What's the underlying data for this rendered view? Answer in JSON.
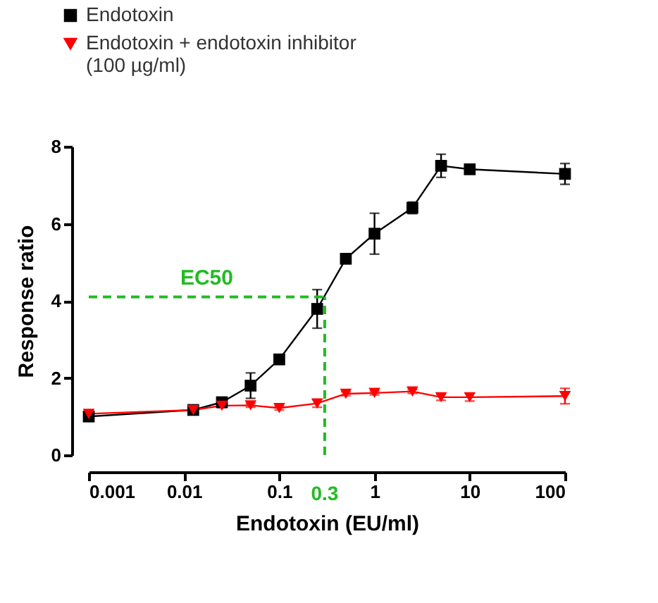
{
  "chart_data": {
    "type": "line",
    "xlabel": "Endotoxin (EU/ml)",
    "ylabel": "Response ratio",
    "x": [
      0.001,
      0.0125,
      0.025,
      0.05,
      0.1,
      0.25,
      0.5,
      1,
      2.5,
      5,
      10,
      100
    ],
    "series": [
      {
        "name": "Endotoxin",
        "color": "#000000",
        "marker": "square",
        "values": [
          1.0,
          1.17,
          1.37,
          1.8,
          2.48,
          3.79,
          5.09,
          5.74,
          6.41,
          7.5,
          7.41,
          7.29
        ],
        "errors": [
          0.05,
          0.05,
          0.08,
          0.33,
          0.08,
          0.5,
          0.12,
          0.53,
          0.15,
          0.3,
          0.05,
          0.27
        ]
      },
      {
        "name": "Endotoxin + endotoxin inhibitor (100 µg/ml)",
        "color": "#ff0000",
        "marker": "triangle-down",
        "values": [
          1.07,
          1.17,
          1.28,
          1.29,
          1.22,
          1.34,
          1.59,
          1.61,
          1.65,
          1.5,
          1.5,
          1.53
        ],
        "errors": [
          0.05,
          0.05,
          0.05,
          0.05,
          0.05,
          0.1,
          0.05,
          0.05,
          0.05,
          0.08,
          0.1,
          0.2
        ]
      }
    ],
    "log": "x",
    "xlim": [
      0.001,
      100
    ],
    "xticks": [
      0.001,
      0.01,
      0.1,
      1,
      10,
      100
    ],
    "ylim": [
      0,
      8
    ],
    "yticks": [
      0,
      2,
      4,
      6,
      8
    ],
    "ref_lines": [
      {
        "axis": "y",
        "value": 4.1,
        "label": "EC50",
        "color": "#22bb22",
        "line_style": "dashed"
      },
      {
        "axis": "x",
        "value": 0.3,
        "label": "0.3",
        "color": "#22bb22",
        "line_style": "dashed"
      }
    ],
    "legend": "top left",
    "grid": false
  }
}
